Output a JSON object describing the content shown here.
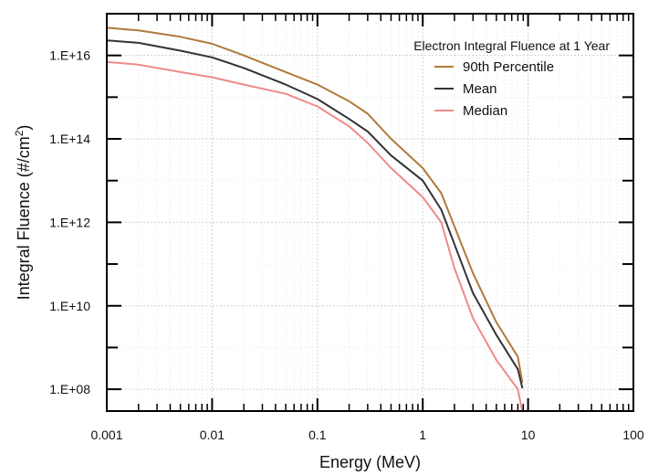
{
  "chart_data": {
    "type": "line",
    "xlabel": "Energy (MeV)",
    "ylabel_main": "Integral Fluence (#/cm",
    "ylabel_sup": "2",
    "ylabel_end": ")",
    "x_scale": "log",
    "y_scale": "log",
    "xlim": [
      0.001,
      100
    ],
    "ylim": [
      30000000.0,
      1e+17
    ],
    "x_ticks": [
      0.001,
      0.01,
      0.1,
      1,
      10,
      100
    ],
    "x_tick_labels": [
      "0.001",
      "0.01",
      "0.1",
      "1",
      "10",
      "100"
    ],
    "y_ticks": [
      100000000.0,
      10000000000.0,
      1000000000000.0,
      100000000000000.0,
      1e+16
    ],
    "y_tick_labels": [
      "1.E+08",
      "1.E+10",
      "1.E+12",
      "1.E+14",
      "1.E+16"
    ],
    "grid": true,
    "legend_title": "Electron Integral Fluence at 1 Year",
    "legend_position": "top-right",
    "series": [
      {
        "name": "90th Percentile",
        "color": "#b07a3a",
        "points": [
          [
            0.001,
            4.6e+16
          ],
          [
            0.002,
            4e+16
          ],
          [
            0.005,
            2.8e+16
          ],
          [
            0.01,
            1.9e+16
          ],
          [
            0.02,
            1e+16
          ],
          [
            0.05,
            4000000000000000.0
          ],
          [
            0.1,
            2000000000000000.0
          ],
          [
            0.2,
            800000000000000.0
          ],
          [
            0.3,
            400000000000000.0
          ],
          [
            0.5,
            100000000000000.0
          ],
          [
            1,
            20000000000000.0
          ],
          [
            1.5,
            5000000000000.0
          ],
          [
            2,
            800000000000.0
          ],
          [
            3,
            60000000000.0
          ],
          [
            5,
            4000000000.0
          ],
          [
            8,
            600000000.0
          ],
          [
            8.8,
            150000000.0
          ]
        ]
      },
      {
        "name": "Mean",
        "color": "#333333",
        "points": [
          [
            0.001,
            2.3e+16
          ],
          [
            0.002,
            2e+16
          ],
          [
            0.005,
            1.3e+16
          ],
          [
            0.01,
            9000000000000000.0
          ],
          [
            0.02,
            5000000000000000.0
          ],
          [
            0.05,
            2000000000000000.0
          ],
          [
            0.1,
            900000000000000.0
          ],
          [
            0.2,
            300000000000000.0
          ],
          [
            0.3,
            150000000000000.0
          ],
          [
            0.5,
            40000000000000.0
          ],
          [
            1,
            10000000000000.0
          ],
          [
            1.5,
            2000000000000.0
          ],
          [
            2,
            300000000000.0
          ],
          [
            3,
            20000000000.0
          ],
          [
            5,
            2000000000.0
          ],
          [
            8,
            300000000.0
          ],
          [
            8.8,
            110000000.0
          ]
        ]
      },
      {
        "name": "Median",
        "color": "#ef8a8a",
        "points": [
          [
            0.001,
            7000000000000000.0
          ],
          [
            0.002,
            6000000000000000.0
          ],
          [
            0.005,
            4000000000000000.0
          ],
          [
            0.01,
            3000000000000000.0
          ],
          [
            0.02,
            2000000000000000.0
          ],
          [
            0.05,
            1200000000000000.0
          ],
          [
            0.1,
            600000000000000.0
          ],
          [
            0.2,
            200000000000000.0
          ],
          [
            0.3,
            80000000000000.0
          ],
          [
            0.5,
            20000000000000.0
          ],
          [
            1,
            4000000000000.0
          ],
          [
            1.5,
            1000000000000.0
          ],
          [
            2,
            80000000000.0
          ],
          [
            3,
            5000000000.0
          ],
          [
            5,
            500000000.0
          ],
          [
            8,
            100000000.0
          ],
          [
            8.8,
            30000000.0
          ]
        ]
      }
    ]
  }
}
